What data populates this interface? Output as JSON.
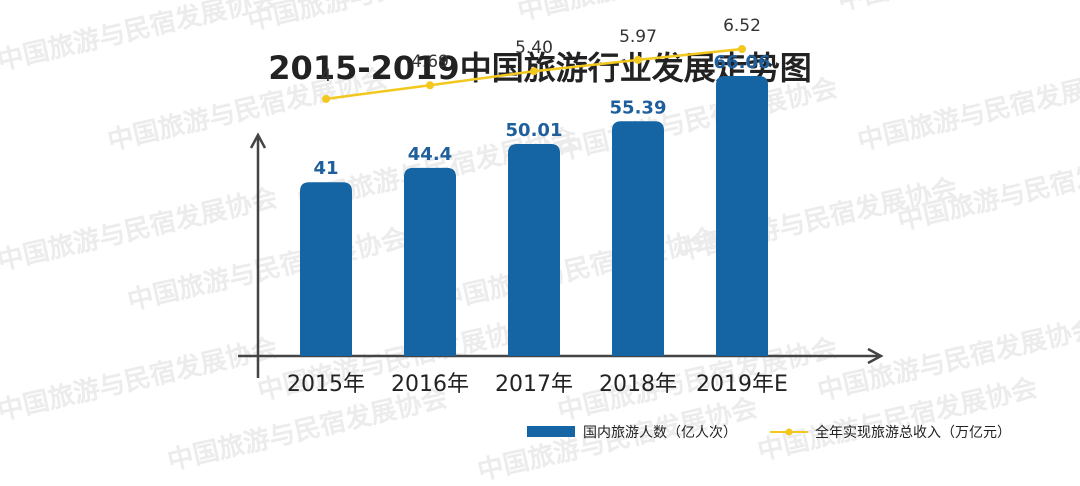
{
  "chart_data": {
    "type": "bar",
    "title": "2015-2019中国旅游行业发展走势图",
    "categories": [
      "2015年",
      "2016年",
      "2017年",
      "2018年",
      "2019年E"
    ],
    "series": [
      {
        "name": "国内旅游人数（亿人次）",
        "type": "bar",
        "values": [
          41,
          44.4,
          50.01,
          55.39,
          66.06
        ],
        "labels": [
          "41",
          "44.4",
          "50.01",
          "55.39",
          "66.06"
        ],
        "color": "#1565a5"
      },
      {
        "name": "全年实现旅游总收入（万亿元）",
        "type": "line",
        "values": [
          4,
          4.69,
          5.4,
          5.97,
          6.52
        ],
        "labels": [
          "4",
          "4.69",
          "5.40",
          "5.97",
          "6.52"
        ],
        "color": "#f2c81e"
      }
    ],
    "bar_ylim": [
      0,
      84
    ],
    "line_ylim": [
      -9,
      9
    ],
    "grid": false,
    "legend_position": "bottom-right"
  },
  "watermark": {
    "text": "中国旅游与民宿发展协会",
    "color": "#ececec"
  }
}
